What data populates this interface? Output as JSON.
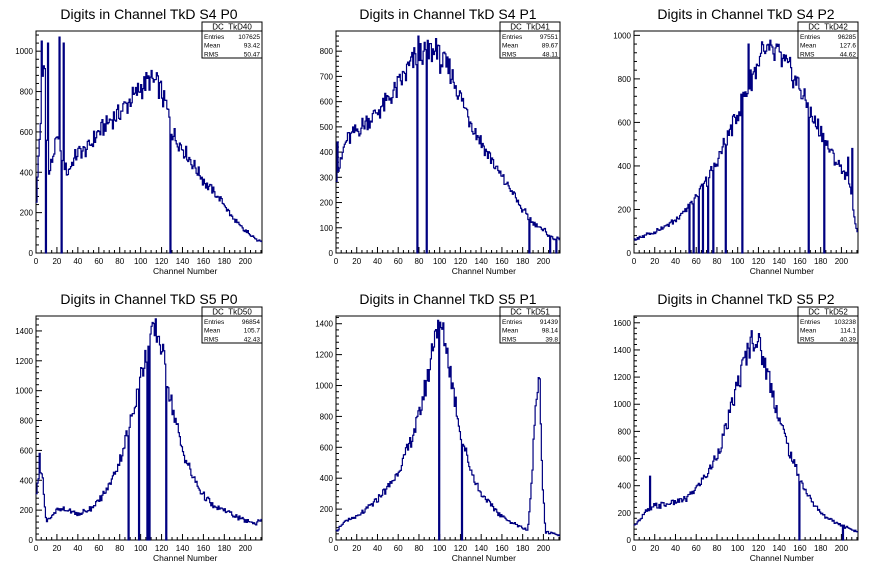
{
  "page": {
    "background": "#ffffff",
    "line_color": "#000080"
  },
  "chart_data": [
    {
      "type": "histogram",
      "title": "Digits in Channel TkD S4 P0",
      "xlabel": "Channel Number",
      "ylabel": "",
      "xlim": [
        0,
        216
      ],
      "ylim": [
        0,
        1100
      ],
      "xticks": [
        0,
        20,
        40,
        60,
        80,
        100,
        120,
        140,
        160,
        180,
        200
      ],
      "yticks": [
        0,
        200,
        400,
        600,
        800,
        1000
      ],
      "grid": false,
      "stats": {
        "name": "DC_TkD40",
        "entries": "107625",
        "mean": "93.42",
        "rms": "50.47"
      },
      "anchors": [
        [
          0,
          220
        ],
        [
          3,
          520
        ],
        [
          8,
          980
        ],
        [
          12,
          380
        ],
        [
          20,
          560
        ],
        [
          30,
          400
        ],
        [
          40,
          500
        ],
        [
          50,
          520
        ],
        [
          60,
          600
        ],
        [
          70,
          650
        ],
        [
          80,
          700
        ],
        [
          90,
          750
        ],
        [
          100,
          820
        ],
        [
          110,
          860
        ],
        [
          118,
          820
        ],
        [
          125,
          720
        ],
        [
          130,
          600
        ],
        [
          140,
          520
        ],
        [
          150,
          440
        ],
        [
          160,
          360
        ],
        [
          170,
          300
        ],
        [
          180,
          240
        ],
        [
          190,
          160
        ],
        [
          200,
          110
        ],
        [
          210,
          70
        ],
        [
          215,
          60
        ]
      ],
      "spikes": [
        [
          5,
          1050,
          0
        ],
        [
          11,
          1040,
          0
        ],
        [
          22,
          1070,
          0
        ],
        [
          26,
          1040,
          0
        ],
        [
          9,
          0,
          0
        ],
        [
          24,
          0,
          0
        ],
        [
          128,
          0,
          0
        ]
      ]
    },
    {
      "type": "histogram",
      "title": "Digits in Channel TkD S4 P1",
      "xlabel": "Channel Number",
      "ylabel": "",
      "xlim": [
        0,
        216
      ],
      "ylim": [
        0,
        880
      ],
      "xticks": [
        0,
        20,
        40,
        60,
        80,
        100,
        120,
        140,
        160,
        180,
        200
      ],
      "yticks": [
        0,
        100,
        200,
        300,
        400,
        500,
        600,
        700,
        800
      ],
      "grid": false,
      "stats": {
        "name": "DC_TkD41",
        "entries": "97551",
        "mean": "89.67",
        "rms": "48.11"
      },
      "anchors": [
        [
          0,
          300
        ],
        [
          5,
          370
        ],
        [
          10,
          450
        ],
        [
          20,
          480
        ],
        [
          30,
          520
        ],
        [
          40,
          560
        ],
        [
          50,
          600
        ],
        [
          60,
          660
        ],
        [
          70,
          730
        ],
        [
          78,
          790
        ],
        [
          85,
          800
        ],
        [
          95,
          790
        ],
        [
          100,
          770
        ],
        [
          110,
          720
        ],
        [
          120,
          620
        ],
        [
          130,
          520
        ],
        [
          140,
          440
        ],
        [
          150,
          370
        ],
        [
          160,
          300
        ],
        [
          170,
          240
        ],
        [
          180,
          170
        ],
        [
          190,
          120
        ],
        [
          200,
          90
        ],
        [
          210,
          60
        ],
        [
          215,
          50
        ]
      ],
      "spikes": [
        [
          1,
          440,
          0
        ],
        [
          79,
          860,
          0
        ],
        [
          84,
          800,
          0
        ],
        [
          96,
          850,
          0
        ],
        [
          78,
          0,
          0
        ],
        [
          87,
          0,
          0
        ],
        [
          186,
          0,
          0
        ],
        [
          206,
          0,
          0
        ],
        [
          212,
          0,
          0
        ]
      ]
    },
    {
      "type": "histogram",
      "title": "Digits in Channel TkD S4 P2",
      "xlabel": "Channel Number",
      "ylabel": "",
      "xlim": [
        0,
        216
      ],
      "ylim": [
        0,
        1020
      ],
      "xticks": [
        0,
        20,
        40,
        60,
        80,
        100,
        120,
        140,
        160,
        180,
        200
      ],
      "yticks": [
        0,
        200,
        400,
        600,
        800,
        1000
      ],
      "grid": false,
      "stats": {
        "name": "DC_TkD42",
        "entries": "96285",
        "mean": "127.6",
        "rms": "44.62"
      },
      "anchors": [
        [
          0,
          60
        ],
        [
          10,
          80
        ],
        [
          20,
          100
        ],
        [
          30,
          120
        ],
        [
          40,
          150
        ],
        [
          50,
          200
        ],
        [
          60,
          260
        ],
        [
          70,
          330
        ],
        [
          80,
          420
        ],
        [
          90,
          530
        ],
        [
          100,
          640
        ],
        [
          110,
          760
        ],
        [
          120,
          880
        ],
        [
          130,
          920
        ],
        [
          140,
          900
        ],
        [
          150,
          840
        ],
        [
          160,
          760
        ],
        [
          170,
          640
        ],
        [
          180,
          560
        ],
        [
          190,
          460
        ],
        [
          200,
          390
        ],
        [
          205,
          350
        ],
        [
          210,
          250
        ],
        [
          215,
          100
        ]
      ],
      "spikes": [
        [
          68,
          330,
          0
        ],
        [
          73,
          380,
          0
        ],
        [
          110,
          960,
          0
        ],
        [
          123,
          970,
          0
        ],
        [
          137,
          960,
          0
        ],
        [
          206,
          440,
          0
        ],
        [
          210,
          480,
          0
        ],
        [
          53,
          0,
          0
        ],
        [
          57,
          0,
          0
        ],
        [
          62,
          0,
          0
        ],
        [
          66,
          0,
          0
        ],
        [
          71,
          0,
          0
        ],
        [
          76,
          0,
          0
        ],
        [
          88,
          0,
          0
        ],
        [
          104,
          0,
          0
        ],
        [
          168,
          0,
          0
        ],
        [
          183,
          0,
          0
        ]
      ]
    },
    {
      "type": "histogram",
      "title": "Digits in Channel TkD S5 P0",
      "xlabel": "Channel Number",
      "ylabel": "",
      "xlim": [
        0,
        216
      ],
      "ylim": [
        0,
        1500
      ],
      "xticks": [
        0,
        20,
        40,
        60,
        80,
        100,
        120,
        140,
        160,
        180,
        200
      ],
      "yticks": [
        0,
        200,
        400,
        600,
        800,
        1000,
        1200,
        1400
      ],
      "grid": false,
      "stats": {
        "name": "DC_TkD50",
        "entries": "96854",
        "mean": "105.7",
        "rms": "42.43"
      },
      "anchors": [
        [
          0,
          300
        ],
        [
          5,
          500
        ],
        [
          10,
          120
        ],
        [
          20,
          200
        ],
        [
          30,
          200
        ],
        [
          40,
          170
        ],
        [
          50,
          200
        ],
        [
          60,
          260
        ],
        [
          70,
          360
        ],
        [
          80,
          530
        ],
        [
          90,
          780
        ],
        [
          100,
          1100
        ],
        [
          110,
          1350
        ],
        [
          115,
          1400
        ],
        [
          120,
          1300
        ],
        [
          130,
          900
        ],
        [
          140,
          600
        ],
        [
          150,
          420
        ],
        [
          160,
          300
        ],
        [
          170,
          220
        ],
        [
          180,
          200
        ],
        [
          190,
          160
        ],
        [
          200,
          130
        ],
        [
          210,
          110
        ],
        [
          215,
          140
        ]
      ],
      "spikes": [
        [
          3,
          580,
          0
        ],
        [
          88,
          0,
          0
        ],
        [
          98,
          0,
          0
        ],
        [
          106,
          0,
          0
        ],
        [
          108,
          0,
          0
        ],
        [
          124,
          0,
          0
        ],
        [
          103,
          1150,
          0
        ],
        [
          112,
          1450,
          0
        ]
      ]
    },
    {
      "type": "histogram",
      "title": "Digits in Channel TkD S5 P1",
      "xlabel": "Channel Number",
      "ylabel": "",
      "xlim": [
        0,
        216
      ],
      "ylim": [
        0,
        1450
      ],
      "xticks": [
        0,
        20,
        40,
        60,
        80,
        100,
        120,
        140,
        160,
        180,
        200
      ],
      "yticks": [
        0,
        200,
        400,
        600,
        800,
        1000,
        1200,
        1400
      ],
      "grid": false,
      "stats": {
        "name": "DC_TkD51",
        "entries": "91439",
        "mean": "98.14",
        "rms": "39.8"
      },
      "anchors": [
        [
          0,
          60
        ],
        [
          10,
          120
        ],
        [
          20,
          150
        ],
        [
          30,
          200
        ],
        [
          40,
          260
        ],
        [
          50,
          340
        ],
        [
          60,
          440
        ],
        [
          70,
          600
        ],
        [
          80,
          800
        ],
        [
          90,
          1100
        ],
        [
          95,
          1350
        ],
        [
          100,
          1400
        ],
        [
          105,
          1300
        ],
        [
          110,
          1100
        ],
        [
          120,
          700
        ],
        [
          130,
          450
        ],
        [
          140,
          300
        ],
        [
          150,
          220
        ],
        [
          160,
          150
        ],
        [
          170,
          110
        ],
        [
          180,
          80
        ],
        [
          185,
          60
        ],
        [
          188,
          300
        ],
        [
          192,
          820
        ],
        [
          196,
          1150
        ],
        [
          199,
          400
        ],
        [
          202,
          50
        ],
        [
          210,
          40
        ],
        [
          215,
          30
        ]
      ],
      "spikes": [
        [
          99,
          0,
          0
        ],
        [
          121,
          0,
          0
        ]
      ]
    },
    {
      "type": "histogram",
      "title": "Digits in Channel TkD S5 P2",
      "xlabel": "Channel Number",
      "ylabel": "",
      "xlim": [
        0,
        216
      ],
      "ylim": [
        0,
        1650
      ],
      "xticks": [
        0,
        20,
        40,
        60,
        80,
        100,
        120,
        140,
        160,
        180,
        200
      ],
      "yticks": [
        0,
        200,
        400,
        600,
        800,
        1000,
        1200,
        1400,
        1600
      ],
      "grid": false,
      "stats": {
        "name": "DC_TkD52",
        "entries": "103238",
        "mean": "114.1",
        "rms": "40.39"
      },
      "anchors": [
        [
          0,
          100
        ],
        [
          5,
          150
        ],
        [
          10,
          200
        ],
        [
          20,
          250
        ],
        [
          30,
          260
        ],
        [
          40,
          280
        ],
        [
          50,
          300
        ],
        [
          60,
          380
        ],
        [
          70,
          480
        ],
        [
          80,
          620
        ],
        [
          90,
          850
        ],
        [
          100,
          1150
        ],
        [
          110,
          1400
        ],
        [
          115,
          1500
        ],
        [
          120,
          1450
        ],
        [
          130,
          1200
        ],
        [
          140,
          900
        ],
        [
          150,
          650
        ],
        [
          160,
          450
        ],
        [
          170,
          300
        ],
        [
          180,
          200
        ],
        [
          190,
          150
        ],
        [
          200,
          110
        ],
        [
          210,
          80
        ],
        [
          215,
          60
        ]
      ],
      "spikes": [
        [
          15,
          470,
          0
        ],
        [
          159,
          0,
          0
        ],
        [
          201,
          0,
          0
        ],
        [
          120,
          1520,
          0
        ]
      ]
    }
  ]
}
